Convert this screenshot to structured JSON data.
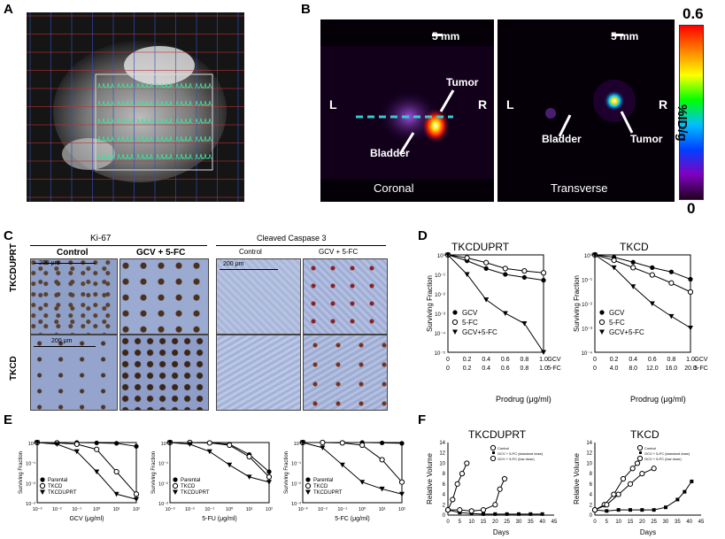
{
  "panel_letters": [
    "A",
    "B",
    "C",
    "D",
    "E",
    "F"
  ],
  "panelB": {
    "scale_left": "5 mm",
    "scale_right": "5 mm",
    "left_L": "L",
    "left_R": "R",
    "right_L": "L",
    "right_R": "R",
    "tumor_left": "Tumor",
    "bladder_left": "Bladder",
    "tumor_right": "Tumor",
    "bladder_right": "Bladder",
    "caption_left": "Coronal",
    "caption_right": "Transverse",
    "colorbar_max": "0.6",
    "colorbar_min": "0",
    "colorbar_unit": "%ID/g"
  },
  "panelC": {
    "ki67": "Ki-67",
    "caspase": "Cleaved Caspase 3",
    "col_control": "Control",
    "col_treat": "GCV + 5-FC",
    "col_control2": "Control",
    "col_treat2": "GCV + 5-FC",
    "row1": "TKCDUPRT",
    "row2": "TKCD",
    "scale1": "200 μm",
    "scale2": "200 μm",
    "scale3": "200 μm"
  },
  "panelD": {
    "title_left": "TKCDUPRT",
    "title_right": "TKCD",
    "ylabel": "Surviving Fraction",
    "xlabel": "Prodrug (μg/ml)",
    "legend": [
      "GCV",
      "5-FC",
      "GCV+5-FC"
    ],
    "left_ticks_gcv": [
      "0",
      "0.2",
      "0.4",
      "0.6",
      "0.8",
      "1.0"
    ],
    "left_ticks_5fc": [
      "0",
      "0.2",
      "0.4",
      "0.6",
      "0.8",
      "1.0"
    ],
    "right_ticks_gcv": [
      "0",
      "0.2",
      "0.4",
      "0.6",
      "0.8",
      "1.0"
    ],
    "right_ticks_5fc": [
      "0",
      "4.0",
      "8.0",
      "12.0",
      "16.0",
      "20.0"
    ],
    "axis_tag_gcv": "GCV",
    "axis_tag_5fc": "5-FC",
    "left_yticks": [
      "10⁰",
      "10⁻¹",
      "10⁻²",
      "10⁻³",
      "10⁻⁴",
      "10⁻⁵"
    ],
    "right_yticks": [
      "10⁰",
      "10⁻¹",
      "10⁻²",
      "10⁻³",
      "10⁻⁴"
    ]
  },
  "panelE": {
    "ylabel": "Surviving Fraction",
    "legend": [
      "Parental",
      "TKCD",
      "TKCDUPRT"
    ],
    "xlabels": [
      "GCV (μg/ml)",
      "5-FU (μg/ml)",
      "5-FC (μg/ml)"
    ],
    "xticks": [
      "10⁻³",
      "10⁻²",
      "10⁻¹",
      "10⁰",
      "10¹",
      "10²"
    ],
    "yticks": [
      "10⁰",
      "10⁻¹",
      "10⁻²",
      "10⁻³"
    ]
  },
  "panelF": {
    "title_left": "TKCDUPRT",
    "title_right": "TKCD",
    "ylabel": "Relative Volume",
    "xlabel": "Days",
    "legend": [
      "Control",
      "GCV + 5-FC (standard dose)",
      "GCV + 5-FC (low dose)"
    ],
    "xticks": [
      "0",
      "5",
      "10",
      "15",
      "20",
      "25",
      "30",
      "35",
      "40",
      "45"
    ],
    "yticks": [
      "0",
      "2",
      "4",
      "6",
      "8",
      "10",
      "12",
      "14"
    ]
  },
  "chart_data": [
    {
      "type": "line",
      "title": "TKCDUPRT",
      "ylabel": "Surviving Fraction",
      "xlabel": "Prodrug (μg/ml)",
      "yscale": "log",
      "ylim": [
        1e-05,
        1
      ],
      "x": [
        0,
        0.2,
        0.4,
        0.6,
        0.8,
        1.0
      ],
      "series": [
        {
          "name": "GCV",
          "values": [
            1,
            0.5,
            0.2,
            0.1,
            0.07,
            0.05
          ]
        },
        {
          "name": "5-FC",
          "values": [
            1,
            0.7,
            0.4,
            0.2,
            0.15,
            0.12
          ]
        },
        {
          "name": "GCV+5-FC",
          "values": [
            1,
            0.1,
            0.005,
            0.001,
            0.0003,
            1e-05
          ]
        }
      ]
    },
    {
      "type": "line",
      "title": "TKCD",
      "ylabel": "Surviving Fraction",
      "xlabel": "Prodrug (μg/ml)",
      "yscale": "log",
      "ylim": [
        0.0001,
        1
      ],
      "x": [
        0,
        0.2,
        0.4,
        0.6,
        0.8,
        1.0
      ],
      "series": [
        {
          "name": "GCV",
          "values": [
            1,
            0.8,
            0.5,
            0.3,
            0.2,
            0.1
          ]
        },
        {
          "name": "5-FC",
          "values": [
            1,
            0.6,
            0.3,
            0.15,
            0.07,
            0.03
          ]
        },
        {
          "name": "GCV+5-FC",
          "values": [
            1,
            0.3,
            0.05,
            0.01,
            0.003,
            0.001
          ]
        }
      ]
    },
    {
      "type": "line",
      "xlabel": "GCV (μg/ml)",
      "ylabel": "Surviving Fraction",
      "xscale": "log",
      "yscale": "log",
      "x": [
        0.001,
        0.01,
        0.1,
        1,
        10,
        100
      ],
      "series": [
        {
          "name": "Parental",
          "values": [
            1,
            1,
            1,
            0.95,
            0.9,
            0.6
          ]
        },
        {
          "name": "TKCD",
          "values": [
            1,
            0.95,
            0.8,
            0.4,
            0.02,
            0.001
          ]
        },
        {
          "name": "TKCDUPRT",
          "values": [
            1,
            0.8,
            0.3,
            0.02,
            0.001,
            0.0005
          ]
        }
      ]
    },
    {
      "type": "line",
      "xlabel": "5-FU (μg/ml)",
      "ylabel": "Surviving Fraction",
      "xscale": "log",
      "yscale": "log",
      "x": [
        0.001,
        0.01,
        0.1,
        1,
        10,
        100
      ],
      "series": [
        {
          "name": "Parental",
          "values": [
            1,
            1,
            0.95,
            0.8,
            0.2,
            0.02
          ]
        },
        {
          "name": "TKCD",
          "values": [
            1,
            1,
            0.95,
            0.7,
            0.15,
            0.01
          ]
        },
        {
          "name": "TKCDUPRT",
          "values": [
            1,
            0.8,
            0.3,
            0.05,
            0.01,
            0.005
          ]
        }
      ]
    },
    {
      "type": "line",
      "xlabel": "5-FC (μg/ml)",
      "ylabel": "Surviving Fraction",
      "xscale": "log",
      "yscale": "log",
      "x": [
        0.001,
        0.01,
        0.1,
        1,
        10,
        100
      ],
      "series": [
        {
          "name": "Parental",
          "values": [
            1,
            1,
            1,
            1,
            0.95,
            0.9
          ]
        },
        {
          "name": "TKCD",
          "values": [
            1,
            1,
            0.95,
            0.7,
            0.1,
            0.005
          ]
        },
        {
          "name": "TKCDUPRT",
          "values": [
            1,
            0.5,
            0.05,
            0.005,
            0.002,
            0.001
          ]
        }
      ]
    },
    {
      "type": "line",
      "title": "TKCDUPRT",
      "xlabel": "Days",
      "ylabel": "Relative Volume",
      "ylim": [
        0,
        14
      ],
      "series": [
        {
          "name": "Control",
          "x": [
            0,
            2,
            4,
            6,
            8
          ],
          "values": [
            1,
            3,
            6,
            8,
            10
          ]
        },
        {
          "name": "GCV + 5-FC (standard dose)",
          "x": [
            0,
            5,
            10,
            15,
            20,
            25,
            30,
            35,
            40
          ],
          "values": [
            1,
            0.5,
            0.3,
            0.2,
            0.2,
            0.2,
            0.2,
            0.2,
            0.2
          ]
        },
        {
          "name": "GCV + 5-FC (low dose)",
          "x": [
            0,
            5,
            10,
            15,
            20,
            22,
            24
          ],
          "values": [
            1,
            1,
            0.8,
            1,
            2,
            5,
            7
          ]
        }
      ]
    },
    {
      "type": "line",
      "title": "TKCD",
      "xlabel": "Days",
      "ylabel": "Relative Volume",
      "ylim": [
        0,
        14
      ],
      "series": [
        {
          "name": "Control",
          "x": [
            0,
            4,
            8,
            12,
            16,
            18
          ],
          "values": [
            1,
            2,
            4,
            7,
            9,
            10
          ]
        },
        {
          "name": "GCV + 5-FC (standard dose)",
          "x": [
            0,
            5,
            10,
            15,
            20,
            25,
            30,
            35,
            38,
            41
          ],
          "values": [
            1,
            0.8,
            1,
            1,
            1,
            1,
            1.5,
            3,
            4.5,
            6.5
          ]
        },
        {
          "name": "GCV + 5-FC (low dose)",
          "x": [
            0,
            5,
            10,
            15,
            20,
            25
          ],
          "values": [
            1,
            2,
            4,
            6,
            8,
            9
          ]
        }
      ]
    }
  ]
}
